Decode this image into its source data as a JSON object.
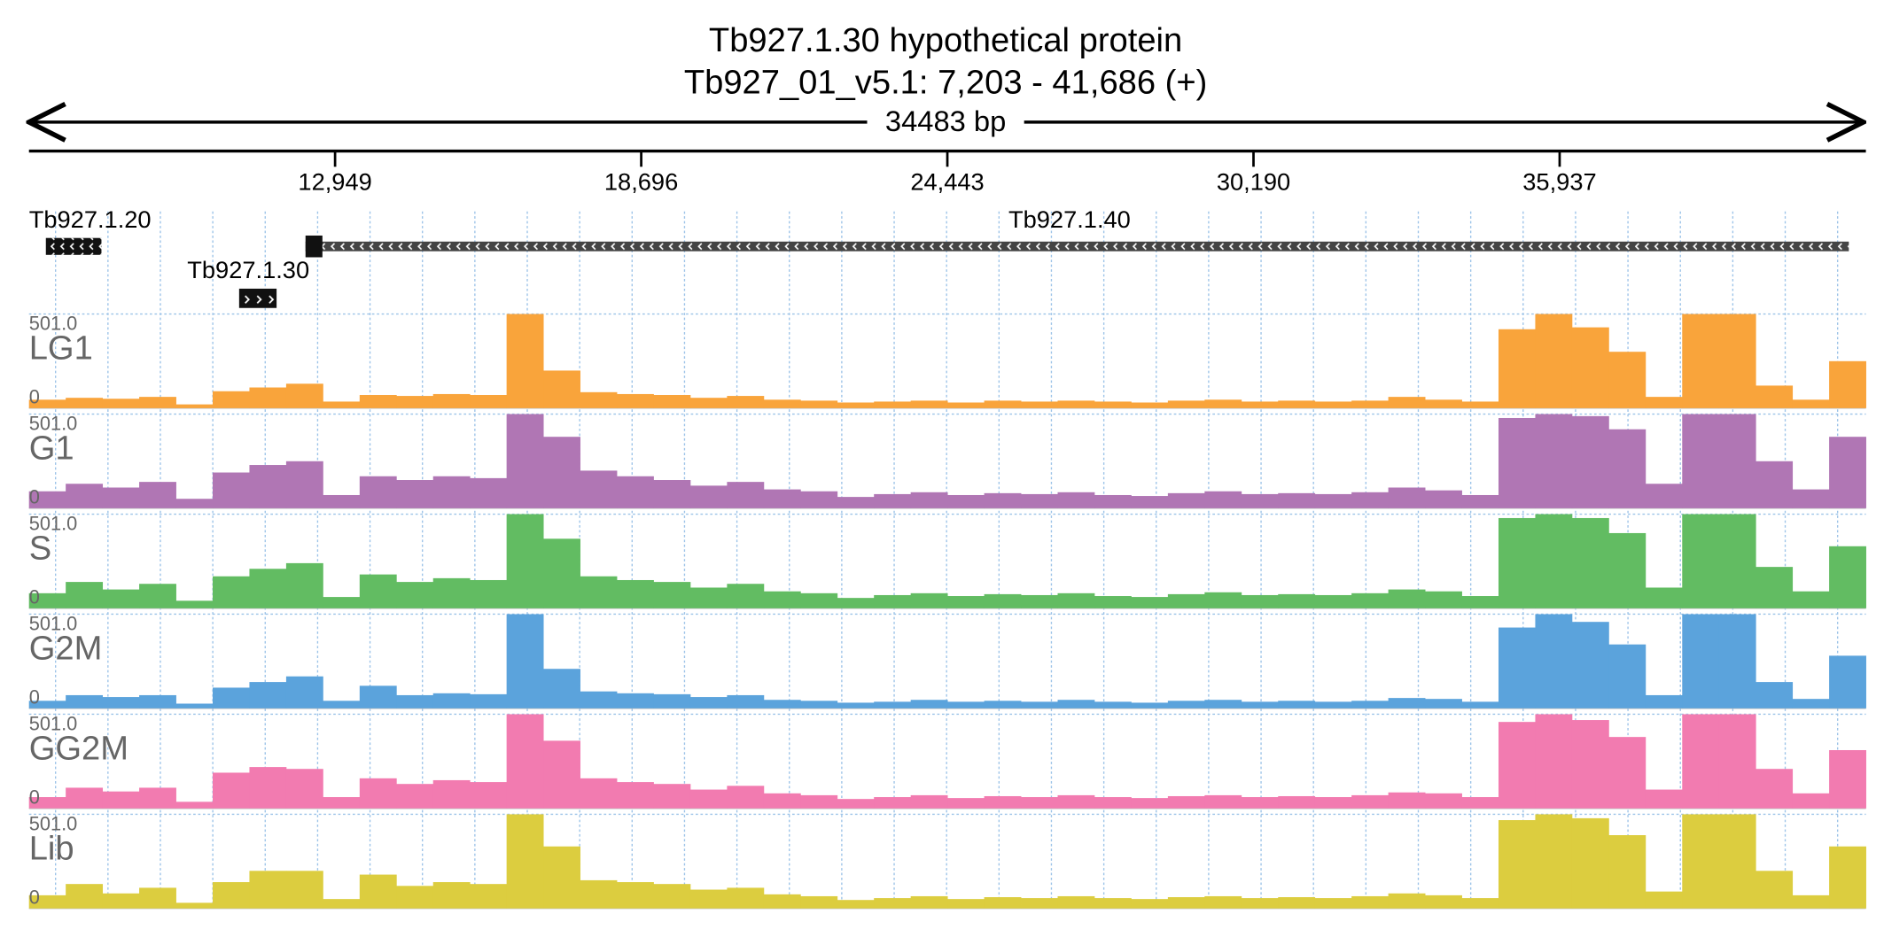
{
  "header": {
    "title": "Tb927.1.30  hypothetical protein",
    "location": "Tb927_01_v5.1: 7,203 - 41,686 (+)",
    "span": "34483 bp"
  },
  "ruler": {
    "range": [
      7203,
      41686
    ],
    "ticks": [
      {
        "value": 12949,
        "label": "12,949"
      },
      {
        "value": 18696,
        "label": "18,696"
      },
      {
        "value": 24443,
        "label": "24,443"
      },
      {
        "value": 30190,
        "label": "30,190"
      },
      {
        "value": 35937,
        "label": "35,937"
      }
    ]
  },
  "genes": [
    {
      "name": "Tb927.1.20",
      "start": 7520,
      "end": 8563
    },
    {
      "name": "Tb927.1.30",
      "start": 11148,
      "end": 11851
    },
    {
      "name": "Tb927.1.40",
      "start": 12394,
      "end": 41366
    }
  ],
  "tracks": [
    {
      "name": "LG1",
      "max": {
        "value": 501,
        "label": "501.0"
      },
      "min": 0,
      "color": "#f9a43b",
      "coverage": [
        45,
        55,
        50,
        60,
        20,
        90,
        110,
        130,
        35,
        70,
        65,
        75,
        70,
        501,
        200,
        85,
        75,
        70,
        55,
        65,
        45,
        40,
        30,
        35,
        40,
        30,
        40,
        35,
        40,
        35,
        30,
        40,
        45,
        35,
        40,
        35,
        40,
        60,
        45,
        35,
        420,
        501,
        430,
        300,
        60,
        501,
        501,
        120,
        45,
        250
      ]
    },
    {
      "name": "G1",
      "max": {
        "value": 501,
        "label": "501.0"
      },
      "min": 0,
      "color": "#b076b4",
      "coverage": [
        90,
        130,
        110,
        140,
        50,
        190,
        230,
        250,
        70,
        170,
        150,
        170,
        160,
        501,
        380,
        200,
        170,
        150,
        120,
        140,
        100,
        90,
        60,
        75,
        85,
        70,
        80,
        75,
        85,
        70,
        65,
        80,
        90,
        75,
        80,
        75,
        85,
        110,
        95,
        70,
        480,
        501,
        490,
        420,
        130,
        501,
        501,
        250,
        100,
        380
      ]
    },
    {
      "name": "S",
      "max": {
        "value": 501,
        "label": "501.0"
      },
      "min": 0,
      "color": "#62bc62",
      "coverage": [
        80,
        140,
        100,
        130,
        40,
        170,
        210,
        240,
        60,
        180,
        140,
        160,
        150,
        501,
        370,
        170,
        150,
        140,
        110,
        130,
        90,
        80,
        55,
        70,
        80,
        65,
        75,
        70,
        80,
        65,
        60,
        75,
        85,
        70,
        75,
        70,
        80,
        100,
        90,
        65,
        480,
        501,
        480,
        400,
        110,
        501,
        501,
        220,
        90,
        330
      ]
    },
    {
      "name": "G2M",
      "max": {
        "value": 501,
        "label": "501.0"
      },
      "min": 0,
      "color": "#5ba3dc",
      "coverage": [
        40,
        70,
        60,
        70,
        25,
        110,
        140,
        170,
        40,
        120,
        70,
        80,
        75,
        501,
        210,
        90,
        80,
        75,
        60,
        70,
        45,
        40,
        30,
        35,
        45,
        35,
        40,
        35,
        45,
        35,
        30,
        40,
        45,
        35,
        40,
        35,
        40,
        55,
        50,
        35,
        430,
        501,
        460,
        340,
        70,
        501,
        501,
        140,
        50,
        280
      ]
    },
    {
      "name": "GG2M",
      "max": {
        "value": 501,
        "label": "501.0"
      },
      "min": 0,
      "color": "#f27bb0",
      "coverage": [
        60,
        110,
        90,
        110,
        35,
        190,
        220,
        210,
        60,
        160,
        130,
        150,
        140,
        501,
        360,
        160,
        140,
        130,
        100,
        120,
        80,
        70,
        50,
        60,
        70,
        55,
        65,
        60,
        70,
        60,
        55,
        65,
        70,
        60,
        65,
        60,
        70,
        85,
        80,
        60,
        460,
        501,
        470,
        380,
        100,
        501,
        501,
        210,
        80,
        310
      ]
    },
    {
      "name": "Lib",
      "max": {
        "value": 501,
        "label": "501.0"
      },
      "min": 0,
      "color": "#dccd3f",
      "coverage": [
        70,
        130,
        80,
        110,
        30,
        140,
        200,
        200,
        50,
        180,
        120,
        140,
        130,
        501,
        330,
        150,
        140,
        130,
        100,
        110,
        75,
        65,
        45,
        55,
        65,
        50,
        60,
        55,
        65,
        55,
        50,
        60,
        65,
        55,
        60,
        55,
        65,
        80,
        70,
        55,
        470,
        501,
        480,
        390,
        90,
        501,
        501,
        200,
        70,
        330
      ]
    }
  ]
}
